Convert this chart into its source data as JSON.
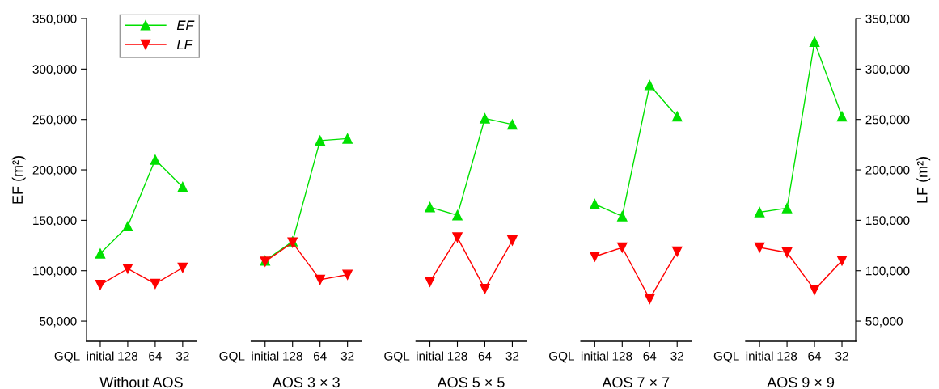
{
  "chart_data": {
    "type": "line",
    "categories": [
      "GQL",
      "initial",
      "128",
      "64",
      "32",
      null,
      "GQL",
      "initial",
      "128",
      "64",
      "32",
      null,
      "GQL",
      "initial",
      "128",
      "64",
      "32",
      null,
      "GQL",
      "initial",
      "128",
      "64",
      "32",
      null,
      "GQL",
      "initial",
      "128",
      "64",
      "32"
    ],
    "ylabel": "EF (m²)",
    "y2label": "LF (m²)",
    "annotations": [
      "Without AOS",
      "AOS 3 × 3",
      "AOS 5 × 5",
      "AOS 7 × 7",
      "AOS 9 × 9"
    ],
    "ylim": [
      30000,
      350000
    ],
    "yticks": [
      {
        "value": 50000,
        "label": "50,000"
      },
      {
        "value": 100000,
        "label": "100,000"
      },
      {
        "value": 150000,
        "label": "150,000"
      },
      {
        "value": 200000,
        "label": "200,000"
      },
      {
        "value": 250000,
        "label": "250,000"
      },
      {
        "value": 300000,
        "label": "300,000"
      },
      {
        "value": 350000,
        "label": "350,000"
      }
    ],
    "y2lim": [
      30000,
      350000
    ],
    "y2ticks": [
      {
        "value": 50000,
        "label": "50,000"
      },
      {
        "value": 100000,
        "label": "100,000"
      },
      {
        "value": 150000,
        "label": "150,000"
      },
      {
        "value": 200000,
        "label": "200,000"
      },
      {
        "value": 250000,
        "label": "250,000"
      },
      {
        "value": 300000,
        "label": "300,000"
      },
      {
        "value": 350000,
        "label": "350,000"
      }
    ],
    "legend": "top left",
    "grid": false,
    "series": [
      {
        "name": "EF",
        "color": "#00e000",
        "marker": "triangle",
        "values": [
          null,
          117000,
          144000,
          210000,
          183000,
          null,
          null,
          110000,
          129000,
          229000,
          231000,
          null,
          null,
          163000,
          155000,
          251000,
          245000,
          null,
          null,
          166000,
          154000,
          284000,
          253000,
          null,
          null,
          158000,
          162000,
          327000,
          253000
        ]
      },
      {
        "name": "LF",
        "color": "#ff0000",
        "marker": "triangle-down",
        "values": [
          null,
          86000,
          102000,
          87000,
          103000,
          null,
          null,
          109000,
          128000,
          91000,
          96000,
          null,
          null,
          89000,
          133000,
          82000,
          130000,
          null,
          null,
          114000,
          123000,
          72000,
          119000,
          null,
          null,
          123000,
          118000,
          81000,
          110000
        ]
      }
    ]
  }
}
